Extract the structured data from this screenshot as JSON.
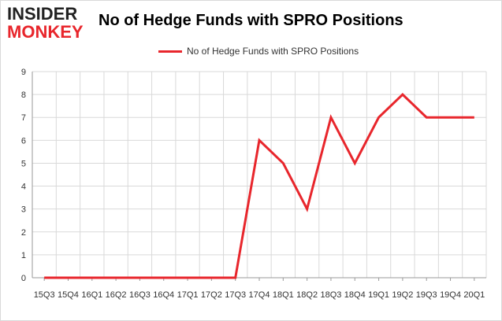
{
  "logo": {
    "line1": "INSIDER",
    "line2": "MONKEY"
  },
  "chart_data": {
    "type": "line",
    "title": "No of Hedge Funds with SPRO Positions",
    "xlabel": "",
    "ylabel": "",
    "categories": [
      "2015Q3",
      "2015Q4",
      "2016Q1",
      "2016Q2",
      "2016Q3",
      "2016Q4",
      "2017Q1",
      "2017Q2",
      "2017Q3",
      "2017Q4",
      "2018Q1",
      "2018Q2",
      "2018Q3",
      "2018Q4",
      "2019Q1",
      "2019Q2",
      "2019Q3",
      "2019Q4",
      "2020Q1"
    ],
    "tick_labels": [
      "15Q3",
      "15Q4",
      "16Q1",
      "16Q2",
      "16Q3",
      "16Q4",
      "17Q1",
      "17Q2",
      "17Q3",
      "17Q4",
      "18Q1",
      "18Q2",
      "18Q3",
      "18Q4",
      "19Q1",
      "19Q2",
      "19Q3",
      "19Q4",
      "20Q1"
    ],
    "series": [
      {
        "name": "No of Hedge Funds with SPRO Positions",
        "color": "#e8262c",
        "values": [
          0,
          0,
          0,
          0,
          0,
          0,
          0,
          0,
          0,
          6,
          5,
          3,
          7,
          5,
          7,
          8,
          7,
          7,
          7
        ]
      }
    ],
    "ylim": [
      0,
      9
    ],
    "yticks": [
      0,
      1,
      2,
      3,
      4,
      5,
      6,
      7,
      8,
      9
    ],
    "grid": true,
    "legend_position": "top-center"
  }
}
